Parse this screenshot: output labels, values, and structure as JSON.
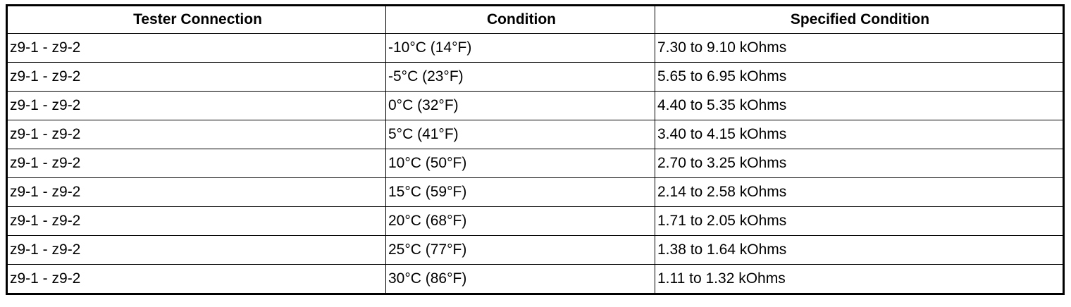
{
  "table": {
    "header": [
      "Tester Connection",
      "Condition",
      "Specified Condition"
    ],
    "rows": [
      [
        "z9-1 - z9-2",
        "-10°C (14°F)",
        "7.30 to 9.10 kOhms"
      ],
      [
        "z9-1 - z9-2",
        "-5°C (23°F)",
        "5.65 to 6.95 kOhms"
      ],
      [
        "z9-1 - z9-2",
        "0°C (32°F)",
        "4.40 to 5.35 kOhms"
      ],
      [
        "z9-1 - z9-2",
        "5°C (41°F)",
        "3.40 to 4.15 kOhms"
      ],
      [
        "z9-1 - z9-2",
        "10°C (50°F)",
        "2.70 to 3.25 kOhms"
      ],
      [
        "z9-1 - z9-2",
        "15°C (59°F)",
        "2.14 to 2.58 kOhms"
      ],
      [
        "z9-1 - z9-2",
        "20°C (68°F)",
        "1.71 to 2.05 kOhms"
      ],
      [
        "z9-1 - z9-2",
        "25°C (77°F)",
        "1.38 to 1.64 kOhms"
      ],
      [
        "z9-1 - z9-2",
        "30°C (86°F)",
        "1.11 to 1.32 kOhms"
      ]
    ]
  }
}
